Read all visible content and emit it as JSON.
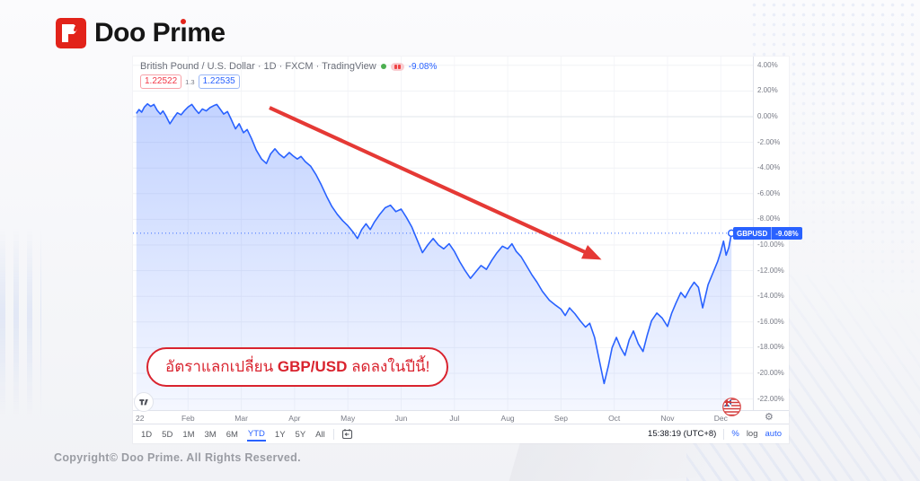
{
  "colors": {
    "brand_red": "#e2231a",
    "accent_blue": "#2962ff",
    "sell_red": "#f23645",
    "annotation_red": "#d9232e",
    "arrow_red": "#e53935",
    "grid": "#f1f2f6",
    "zero_line": "#e2e5eb",
    "axis_text": "#787b86"
  },
  "logo": {
    "brand": "Doo Prime",
    "text_before_i": "Doo Pr",
    "i_char": "ı",
    "text_after_i": "me"
  },
  "page": {
    "copyright": "Copyright© Doo Prime. All Rights Reserved."
  },
  "annotation": {
    "prefix": "อัตราแลกเปลี่ยน ",
    "pair": "GBP/USD",
    "suffix": " ลดลงในปีนี้!"
  },
  "chart": {
    "header": {
      "title": "British Pound / U.S. Dollar · 1D · FXCM · TradingView",
      "change_pct": "-9.08%",
      "sell_price": "1.22522",
      "spread": "1.3",
      "buy_price": "1.22535"
    },
    "series_badge": {
      "symbol": "GBPUSD",
      "value": "-9.08%"
    },
    "toolbar": {
      "ranges": [
        "1D",
        "5D",
        "1M",
        "3M",
        "6M",
        "YTD",
        "1Y",
        "5Y",
        "All"
      ],
      "active_range": "YTD",
      "clock": "15:38:19 (UTC+8)",
      "percent_label": "%",
      "log_label": "log",
      "auto_label": "auto"
    },
    "icons": {
      "market_status": "green-dot",
      "data_mode": "pink-pill",
      "gear": "⚙",
      "go_to_date": "calendar",
      "tradingview": "TV",
      "pair_flags": "GBP/USD flags"
    }
  },
  "chart_data": {
    "type": "area",
    "title": "British Pound / U.S. Dollar YTD percent change 2022",
    "unit": "%",
    "last_value": -9.08,
    "line_color": "#2962ff",
    "x_axis_labels": [
      "22",
      "Feb",
      "Mar",
      "Apr",
      "May",
      "Jun",
      "Jul",
      "Aug",
      "Sep",
      "Oct",
      "Nov",
      "Dec"
    ],
    "y_ticks": [
      "4.00%",
      "2.00%",
      "0.00%",
      "-2.00%",
      "-4.00%",
      "-6.00%",
      "-8.00%",
      "-10.00%",
      "-12.00%",
      "-14.00%",
      "-16.00%",
      "-18.00%",
      "-20.00%",
      "-22.00%"
    ],
    "ylim": [
      -23,
      4.8
    ],
    "grid": true,
    "points": [
      [
        0.03,
        0.25
      ],
      [
        0.08,
        0.55
      ],
      [
        0.13,
        0.35
      ],
      [
        0.18,
        0.75
      ],
      [
        0.24,
        1.0
      ],
      [
        0.3,
        0.8
      ],
      [
        0.36,
        0.95
      ],
      [
        0.42,
        0.5
      ],
      [
        0.48,
        0.2
      ],
      [
        0.53,
        0.45
      ],
      [
        0.58,
        0.1
      ],
      [
        0.66,
        -0.55
      ],
      [
        0.73,
        -0.1
      ],
      [
        0.8,
        0.3
      ],
      [
        0.87,
        0.15
      ],
      [
        0.94,
        0.5
      ],
      [
        1.0,
        0.75
      ],
      [
        1.07,
        0.95
      ],
      [
        1.14,
        0.55
      ],
      [
        1.2,
        0.25
      ],
      [
        1.27,
        0.6
      ],
      [
        1.34,
        0.45
      ],
      [
        1.41,
        0.7
      ],
      [
        1.48,
        0.85
      ],
      [
        1.54,
        0.95
      ],
      [
        1.6,
        0.6
      ],
      [
        1.67,
        0.2
      ],
      [
        1.74,
        0.4
      ],
      [
        1.81,
        -0.2
      ],
      [
        1.89,
        -0.95
      ],
      [
        1.96,
        -0.55
      ],
      [
        2.04,
        -1.25
      ],
      [
        2.11,
        -1.0
      ],
      [
        2.19,
        -1.7
      ],
      [
        2.28,
        -2.6
      ],
      [
        2.38,
        -3.3
      ],
      [
        2.47,
        -3.65
      ],
      [
        2.55,
        -2.9
      ],
      [
        2.63,
        -2.5
      ],
      [
        2.71,
        -2.9
      ],
      [
        2.8,
        -3.2
      ],
      [
        2.9,
        -2.8
      ],
      [
        2.97,
        -3.05
      ],
      [
        3.05,
        -3.3
      ],
      [
        3.12,
        -3.1
      ],
      [
        3.2,
        -3.5
      ],
      [
        3.3,
        -3.85
      ],
      [
        3.4,
        -4.5
      ],
      [
        3.5,
        -5.3
      ],
      [
        3.6,
        -6.2
      ],
      [
        3.7,
        -7.0
      ],
      [
        3.8,
        -7.6
      ],
      [
        3.9,
        -8.1
      ],
      [
        4.0,
        -8.5
      ],
      [
        4.1,
        -9.0
      ],
      [
        4.18,
        -9.5
      ],
      [
        4.26,
        -8.8
      ],
      [
        4.34,
        -8.35
      ],
      [
        4.42,
        -8.8
      ],
      [
        4.5,
        -8.2
      ],
      [
        4.6,
        -7.6
      ],
      [
        4.7,
        -7.1
      ],
      [
        4.8,
        -6.9
      ],
      [
        4.9,
        -7.4
      ],
      [
        5.0,
        -7.2
      ],
      [
        5.1,
        -7.85
      ],
      [
        5.2,
        -8.6
      ],
      [
        5.3,
        -9.6
      ],
      [
        5.4,
        -10.6
      ],
      [
        5.5,
        -10.0
      ],
      [
        5.6,
        -9.5
      ],
      [
        5.7,
        -10.0
      ],
      [
        5.8,
        -10.3
      ],
      [
        5.9,
        -9.9
      ],
      [
        6.0,
        -10.5
      ],
      [
        6.1,
        -11.3
      ],
      [
        6.2,
        -12.0
      ],
      [
        6.3,
        -12.6
      ],
      [
        6.4,
        -12.1
      ],
      [
        6.5,
        -11.6
      ],
      [
        6.6,
        -11.9
      ],
      [
        6.7,
        -11.2
      ],
      [
        6.8,
        -10.6
      ],
      [
        6.9,
        -10.1
      ],
      [
        7.0,
        -10.3
      ],
      [
        7.08,
        -9.9
      ],
      [
        7.16,
        -10.5
      ],
      [
        7.25,
        -10.9
      ],
      [
        7.35,
        -11.6
      ],
      [
        7.45,
        -12.3
      ],
      [
        7.55,
        -12.9
      ],
      [
        7.65,
        -13.6
      ],
      [
        7.78,
        -14.3
      ],
      [
        7.9,
        -14.7
      ],
      [
        8.0,
        -15.0
      ],
      [
        8.08,
        -15.5
      ],
      [
        8.16,
        -14.9
      ],
      [
        8.26,
        -15.35
      ],
      [
        8.36,
        -15.9
      ],
      [
        8.46,
        -16.4
      ],
      [
        8.54,
        -16.1
      ],
      [
        8.63,
        -17.2
      ],
      [
        8.73,
        -19.2
      ],
      [
        8.81,
        -20.8
      ],
      [
        8.89,
        -19.4
      ],
      [
        8.96,
        -18.0
      ],
      [
        9.04,
        -17.2
      ],
      [
        9.12,
        -18.0
      ],
      [
        9.2,
        -18.6
      ],
      [
        9.28,
        -17.4
      ],
      [
        9.36,
        -16.7
      ],
      [
        9.45,
        -17.7
      ],
      [
        9.54,
        -18.3
      ],
      [
        9.62,
        -17.0
      ],
      [
        9.7,
        -15.9
      ],
      [
        9.8,
        -15.3
      ],
      [
        9.9,
        -15.7
      ],
      [
        10.0,
        -16.35
      ],
      [
        10.08,
        -15.3
      ],
      [
        10.16,
        -14.5
      ],
      [
        10.25,
        -13.7
      ],
      [
        10.33,
        -14.1
      ],
      [
        10.42,
        -13.4
      ],
      [
        10.5,
        -12.9
      ],
      [
        10.58,
        -13.3
      ],
      [
        10.66,
        -14.9
      ],
      [
        10.76,
        -13.1
      ],
      [
        10.86,
        -12.1
      ],
      [
        10.94,
        -11.3
      ],
      [
        11.0,
        -10.5
      ],
      [
        11.05,
        -9.7
      ],
      [
        11.1,
        -10.8
      ],
      [
        11.15,
        -10.2
      ],
      [
        11.2,
        -9.08
      ]
    ]
  }
}
